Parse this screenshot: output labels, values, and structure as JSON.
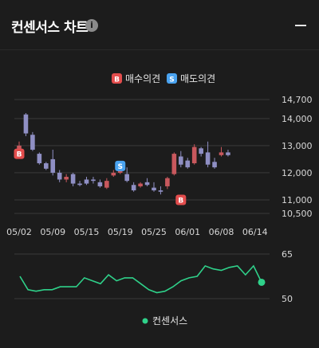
{
  "header": {
    "title": "컨센서스 차트",
    "info_icon": "i",
    "minimize_icon": "minimize-icon"
  },
  "colors": {
    "background": "#1c1c1c",
    "up": "#c8585d",
    "down": "#8f8fc4",
    "buy_badge": "#e34d4d",
    "sell_badge": "#4aa3f0",
    "consensus_line": "#2fd18a"
  },
  "chart_data": [
    {
      "type": "candlestick",
      "legend": [
        {
          "badge": "B",
          "label": "매수의견"
        },
        {
          "badge": "S",
          "label": "매도의견"
        }
      ],
      "yticks": [
        14700,
        14000,
        13000,
        12000,
        11000,
        10500
      ],
      "ytick_labels": [
        "14,700",
        "14,000",
        "13,000",
        "12,000",
        "11,000",
        "10,500"
      ],
      "ylim": [
        10500,
        14700
      ],
      "xtick_labels": [
        "05/02",
        "05/09",
        "05/15",
        "05/19",
        "05/25",
        "06/01",
        "06/08",
        "06/14"
      ],
      "xtick_index": [
        0,
        5,
        10,
        15,
        20,
        25,
        30,
        35
      ],
      "candles": [
        {
          "o": 12800,
          "h": 13150,
          "l": 12650,
          "c": 13000
        },
        {
          "o": 14150,
          "h": 14200,
          "l": 13350,
          "c": 13450
        },
        {
          "o": 13400,
          "h": 13500,
          "l": 12800,
          "c": 12850
        },
        {
          "o": 12700,
          "h": 12750,
          "l": 12300,
          "c": 12350
        },
        {
          "o": 12350,
          "h": 12400,
          "l": 12100,
          "c": 12150
        },
        {
          "o": 12500,
          "h": 12850,
          "l": 11900,
          "c": 12000
        },
        {
          "o": 12000,
          "h": 12100,
          "l": 11650,
          "c": 11750
        },
        {
          "o": 11750,
          "h": 11950,
          "l": 11650,
          "c": 11850
        },
        {
          "o": 11950,
          "h": 12000,
          "l": 11500,
          "c": 11600
        },
        {
          "o": 11600,
          "h": 11700,
          "l": 11500,
          "c": 11550
        },
        {
          "o": 11750,
          "h": 11850,
          "l": 11550,
          "c": 11600
        },
        {
          "o": 11750,
          "h": 11850,
          "l": 11600,
          "c": 11700
        },
        {
          "o": 11650,
          "h": 11750,
          "l": 11450,
          "c": 11500
        },
        {
          "o": 11450,
          "h": 11800,
          "l": 11400,
          "c": 11700
        },
        {
          "o": 11900,
          "h": 12100,
          "l": 11850,
          "c": 12000
        },
        {
          "o": 12000,
          "h": 12400,
          "l": 11950,
          "c": 12200
        },
        {
          "o": 11950,
          "h": 12200,
          "l": 11650,
          "c": 11700
        },
        {
          "o": 11550,
          "h": 11650,
          "l": 11300,
          "c": 11350
        },
        {
          "o": 11500,
          "h": 11650,
          "l": 11450,
          "c": 11600
        },
        {
          "o": 11650,
          "h": 11800,
          "l": 11500,
          "c": 11550
        },
        {
          "o": 11450,
          "h": 11650,
          "l": 11300,
          "c": 11350
        },
        {
          "o": 11350,
          "h": 11500,
          "l": 11200,
          "c": 11300
        },
        {
          "o": 11500,
          "h": 11850,
          "l": 11400,
          "c": 11800
        },
        {
          "o": 11950,
          "h": 12750,
          "l": 11900,
          "c": 12700
        },
        {
          "o": 12600,
          "h": 12800,
          "l": 12200,
          "c": 12300
        },
        {
          "o": 12450,
          "h": 12550,
          "l": 12150,
          "c": 12200
        },
        {
          "o": 12350,
          "h": 13050,
          "l": 12300,
          "c": 12950
        },
        {
          "o": 12900,
          "h": 12950,
          "l": 12600,
          "c": 12700
        },
        {
          "o": 12750,
          "h": 13150,
          "l": 12200,
          "c": 12300
        },
        {
          "o": 12400,
          "h": 12550,
          "l": 12150,
          "c": 12200
        },
        {
          "o": 12650,
          "h": 12950,
          "l": 12600,
          "c": 12750
        },
        {
          "o": 12750,
          "h": 12850,
          "l": 12600,
          "c": 12650
        }
      ],
      "signals": [
        {
          "type": "B",
          "index": 0,
          "price": 12700
        },
        {
          "type": "S",
          "index": 15,
          "price": 12250
        },
        {
          "type": "B",
          "index": 24,
          "price": 11000
        }
      ]
    },
    {
      "type": "line",
      "yticks": [
        65,
        50
      ],
      "ylim": [
        50,
        65
      ],
      "series": [
        {
          "name": "컨센서스",
          "values": [
            57.5,
            53,
            52.5,
            53,
            53,
            54,
            54,
            54,
            57,
            56,
            55,
            58,
            56,
            57,
            57,
            55,
            53,
            52,
            52.5,
            54,
            56,
            57,
            57.5,
            61,
            60,
            59.5,
            60.5,
            61,
            58,
            61,
            55.5
          ]
        }
      ]
    }
  ]
}
